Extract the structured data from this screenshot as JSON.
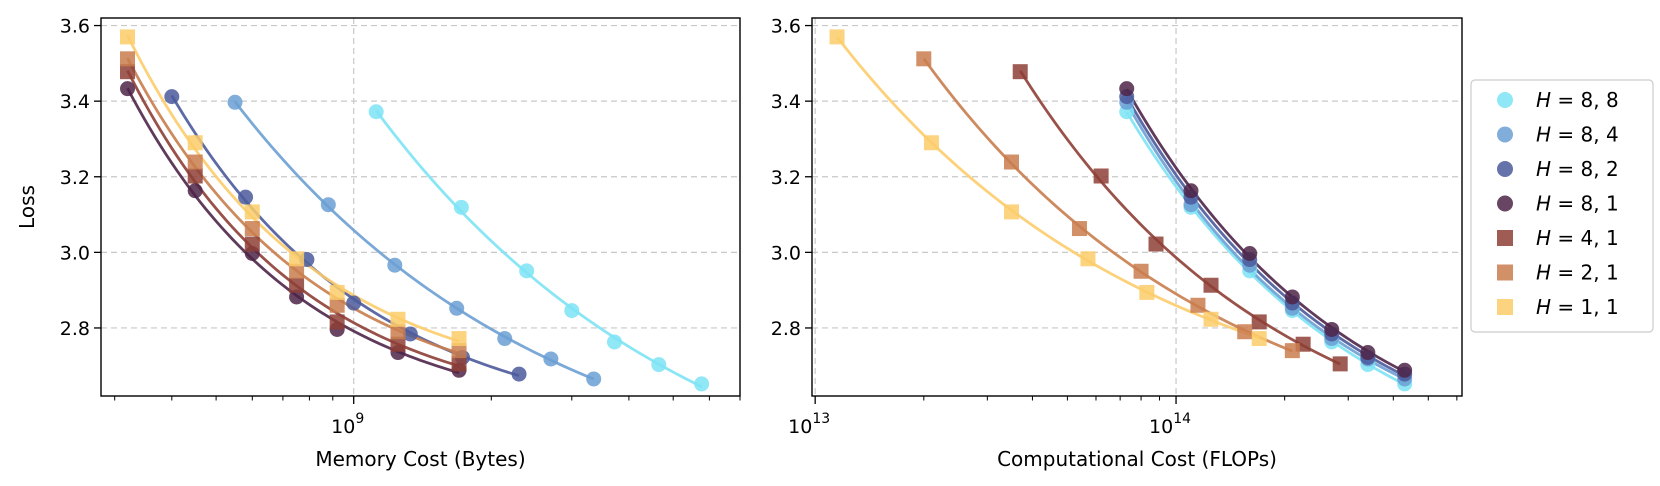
{
  "chart_data": [
    {
      "type": "scatter",
      "xscale": "log",
      "xlabel": "Memory Cost (Bytes)",
      "ylabel": "Loss",
      "ylim": [
        2.62,
        3.62
      ],
      "xlim": [
        280000000,
        7000000000
      ],
      "x_major_ticks": [
        {
          "value": 1000000000,
          "mantissa": "10",
          "exponent": "9"
        }
      ],
      "y_ticks": [
        "2.8",
        "3.0",
        "3.2",
        "3.4",
        "3.6"
      ],
      "y_tick_values": [
        2.8,
        3.0,
        3.2,
        3.4,
        3.6
      ],
      "grid": true,
      "series": [
        {
          "key": "H=8,8",
          "x": [
            1120000000,
            1720000000,
            2390000000,
            3000000000,
            3720000000,
            4650000000,
            5770000000
          ],
          "y": [
            3.372,
            3.119,
            2.951,
            2.846,
            2.763,
            2.703,
            2.652
          ]
        },
        {
          "key": "H=8,4",
          "x": [
            550000000,
            880000000,
            1230000000,
            1680000000,
            2140000000,
            2700000000,
            3350000000
          ],
          "y": [
            3.397,
            3.126,
            2.966,
            2.852,
            2.772,
            2.718,
            2.665
          ]
        },
        {
          "key": "H=8,2",
          "x": [
            400000000,
            580000000,
            790000000,
            1000000000,
            1330000000,
            1730000000,
            2300000000
          ],
          "y": [
            3.412,
            3.146,
            2.981,
            2.866,
            2.784,
            2.722,
            2.678
          ]
        },
        {
          "key": "H=8,1",
          "x": [
            320000000,
            450000000,
            600000000,
            750000000,
            920000000,
            1250000000,
            1700000000
          ],
          "y": [
            3.433,
            3.163,
            2.997,
            2.882,
            2.796,
            2.735,
            2.688
          ]
        },
        {
          "key": "H=4,1",
          "x": [
            320000000,
            450000000,
            600000000,
            750000000,
            920000000,
            1250000000,
            1700000000
          ],
          "y": [
            3.478,
            3.202,
            3.022,
            2.913,
            2.816,
            2.757,
            2.705
          ]
        },
        {
          "key": "H=2,1",
          "x": [
            320000000,
            450000000,
            600000000,
            750000000,
            920000000,
            1250000000,
            1700000000
          ],
          "y": [
            3.512,
            3.239,
            3.063,
            2.95,
            2.86,
            2.79,
            2.74
          ]
        },
        {
          "key": "H=1,1",
          "x": [
            320000000,
            450000000,
            600000000,
            750000000,
            920000000,
            1250000000,
            1700000000
          ],
          "y": [
            3.57,
            3.29,
            3.107,
            2.983,
            2.894,
            2.823,
            2.772
          ]
        }
      ]
    },
    {
      "type": "scatter",
      "xscale": "log",
      "xlabel": "Computational Cost (FLOPs)",
      "ylabel": "",
      "ylim": [
        2.62,
        3.62
      ],
      "xlim": [
        9800000000000,
        620000000000000
      ],
      "x_major_ticks": [
        {
          "value": 10000000000000,
          "mantissa": "10",
          "exponent": "13"
        },
        {
          "value": 100000000000000,
          "mantissa": "10",
          "exponent": "14"
        }
      ],
      "y_ticks": [
        "2.8",
        "3.0",
        "3.2",
        "3.4",
        "3.6"
      ],
      "y_tick_values": [
        2.8,
        3.0,
        3.2,
        3.4,
        3.6
      ],
      "grid": true,
      "series": [
        {
          "key": "H=8,8",
          "x": [
            73000000000000,
            110000000000000,
            160000000000000,
            210000000000000,
            270000000000000,
            340000000000000,
            430000000000000
          ],
          "y": [
            3.372,
            3.119,
            2.951,
            2.846,
            2.763,
            2.703,
            2.652
          ]
        },
        {
          "key": "H=8,4",
          "x": [
            73000000000000,
            110000000000000,
            160000000000000,
            210000000000000,
            270000000000000,
            340000000000000,
            430000000000000
          ],
          "y": [
            3.397,
            3.126,
            2.966,
            2.852,
            2.772,
            2.718,
            2.665
          ]
        },
        {
          "key": "H=8,2",
          "x": [
            73000000000000,
            110000000000000,
            160000000000000,
            210000000000000,
            270000000000000,
            340000000000000,
            430000000000000
          ],
          "y": [
            3.412,
            3.146,
            2.981,
            2.866,
            2.784,
            2.722,
            2.678
          ]
        },
        {
          "key": "H=8,1",
          "x": [
            73000000000000,
            110000000000000,
            160000000000000,
            210000000000000,
            270000000000000,
            340000000000000,
            430000000000000
          ],
          "y": [
            3.433,
            3.163,
            2.997,
            2.882,
            2.796,
            2.735,
            2.688
          ]
        },
        {
          "key": "H=4,1",
          "x": [
            37000000000000,
            62000000000000,
            88000000000000,
            125000000000000,
            170000000000000,
            225000000000000,
            285000000000000
          ],
          "y": [
            3.478,
            3.202,
            3.022,
            2.913,
            2.816,
            2.757,
            2.705
          ]
        },
        {
          "key": "H=2,1",
          "x": [
            20000000000000,
            35000000000000,
            54000000000000,
            80000000000000,
            115000000000000,
            155000000000000,
            210000000000000
          ],
          "y": [
            3.512,
            3.239,
            3.063,
            2.95,
            2.86,
            2.79,
            2.74
          ]
        },
        {
          "key": "H=1,1",
          "x": [
            11500000000000,
            21000000000000,
            35000000000000,
            57000000000000,
            83000000000000,
            125000000000000,
            170000000000000
          ],
          "y": [
            3.57,
            3.29,
            3.107,
            2.983,
            2.894,
            2.823,
            2.772
          ]
        }
      ]
    }
  ],
  "legend": {
    "placement": "right",
    "entries": [
      {
        "key": "H=8,8",
        "var": "H",
        "value": "= 8, 8",
        "marker": "circle",
        "color": "#7de3f4"
      },
      {
        "key": "H=8,4",
        "var": "H",
        "value": "= 8, 4",
        "marker": "circle",
        "color": "#6b9fd3"
      },
      {
        "key": "H=8,2",
        "var": "H",
        "value": "= 8, 2",
        "marker": "circle",
        "color": "#4b5a9c"
      },
      {
        "key": "H=8,1",
        "var": "H",
        "value": "= 8, 1",
        "marker": "circle",
        "color": "#4e2548"
      },
      {
        "key": "H=4,1",
        "var": "H",
        "value": "= 4, 1",
        "marker": "square",
        "color": "#8e3f36"
      },
      {
        "key": "H=2,1",
        "var": "H",
        "value": "= 2, 1",
        "marker": "square",
        "color": "#c97d4e"
      },
      {
        "key": "H=1,1",
        "var": "H",
        "value": "= 1, 1",
        "marker": "square",
        "color": "#fccc6a"
      }
    ]
  }
}
